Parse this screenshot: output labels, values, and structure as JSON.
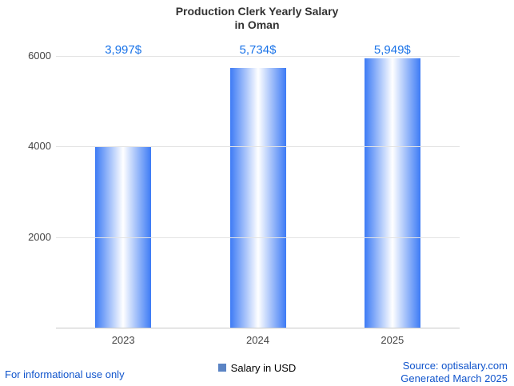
{
  "title": {
    "line1": "Production Clerk Yearly Salary",
    "line2": "in Oman"
  },
  "chart_data": {
    "type": "bar",
    "title": "Production Clerk Yearly Salary in Oman",
    "categories": [
      "2023",
      "2024",
      "2025"
    ],
    "series": [
      {
        "name": "Salary in USD",
        "values": [
          3997,
          5734,
          5949
        ]
      }
    ],
    "value_labels": [
      "3,997$",
      "5,734$",
      "5,949$"
    ],
    "xlabel": "",
    "ylabel": "",
    "ylim": [
      0,
      6000
    ],
    "yticks": [
      2000,
      4000,
      6000
    ],
    "grid": true,
    "legend_position": "bottom",
    "bar_edge_color": "#3d7bf5",
    "bar_center_color": "#ffffff",
    "value_label_color": "#1a73e8"
  },
  "legend": {
    "label": "Salary in USD",
    "swatch_color": "#5b84c4"
  },
  "footer": {
    "disclaimer": "For informational use only",
    "source": "Source: optisalary.com",
    "generated": "Generated March 2025"
  }
}
